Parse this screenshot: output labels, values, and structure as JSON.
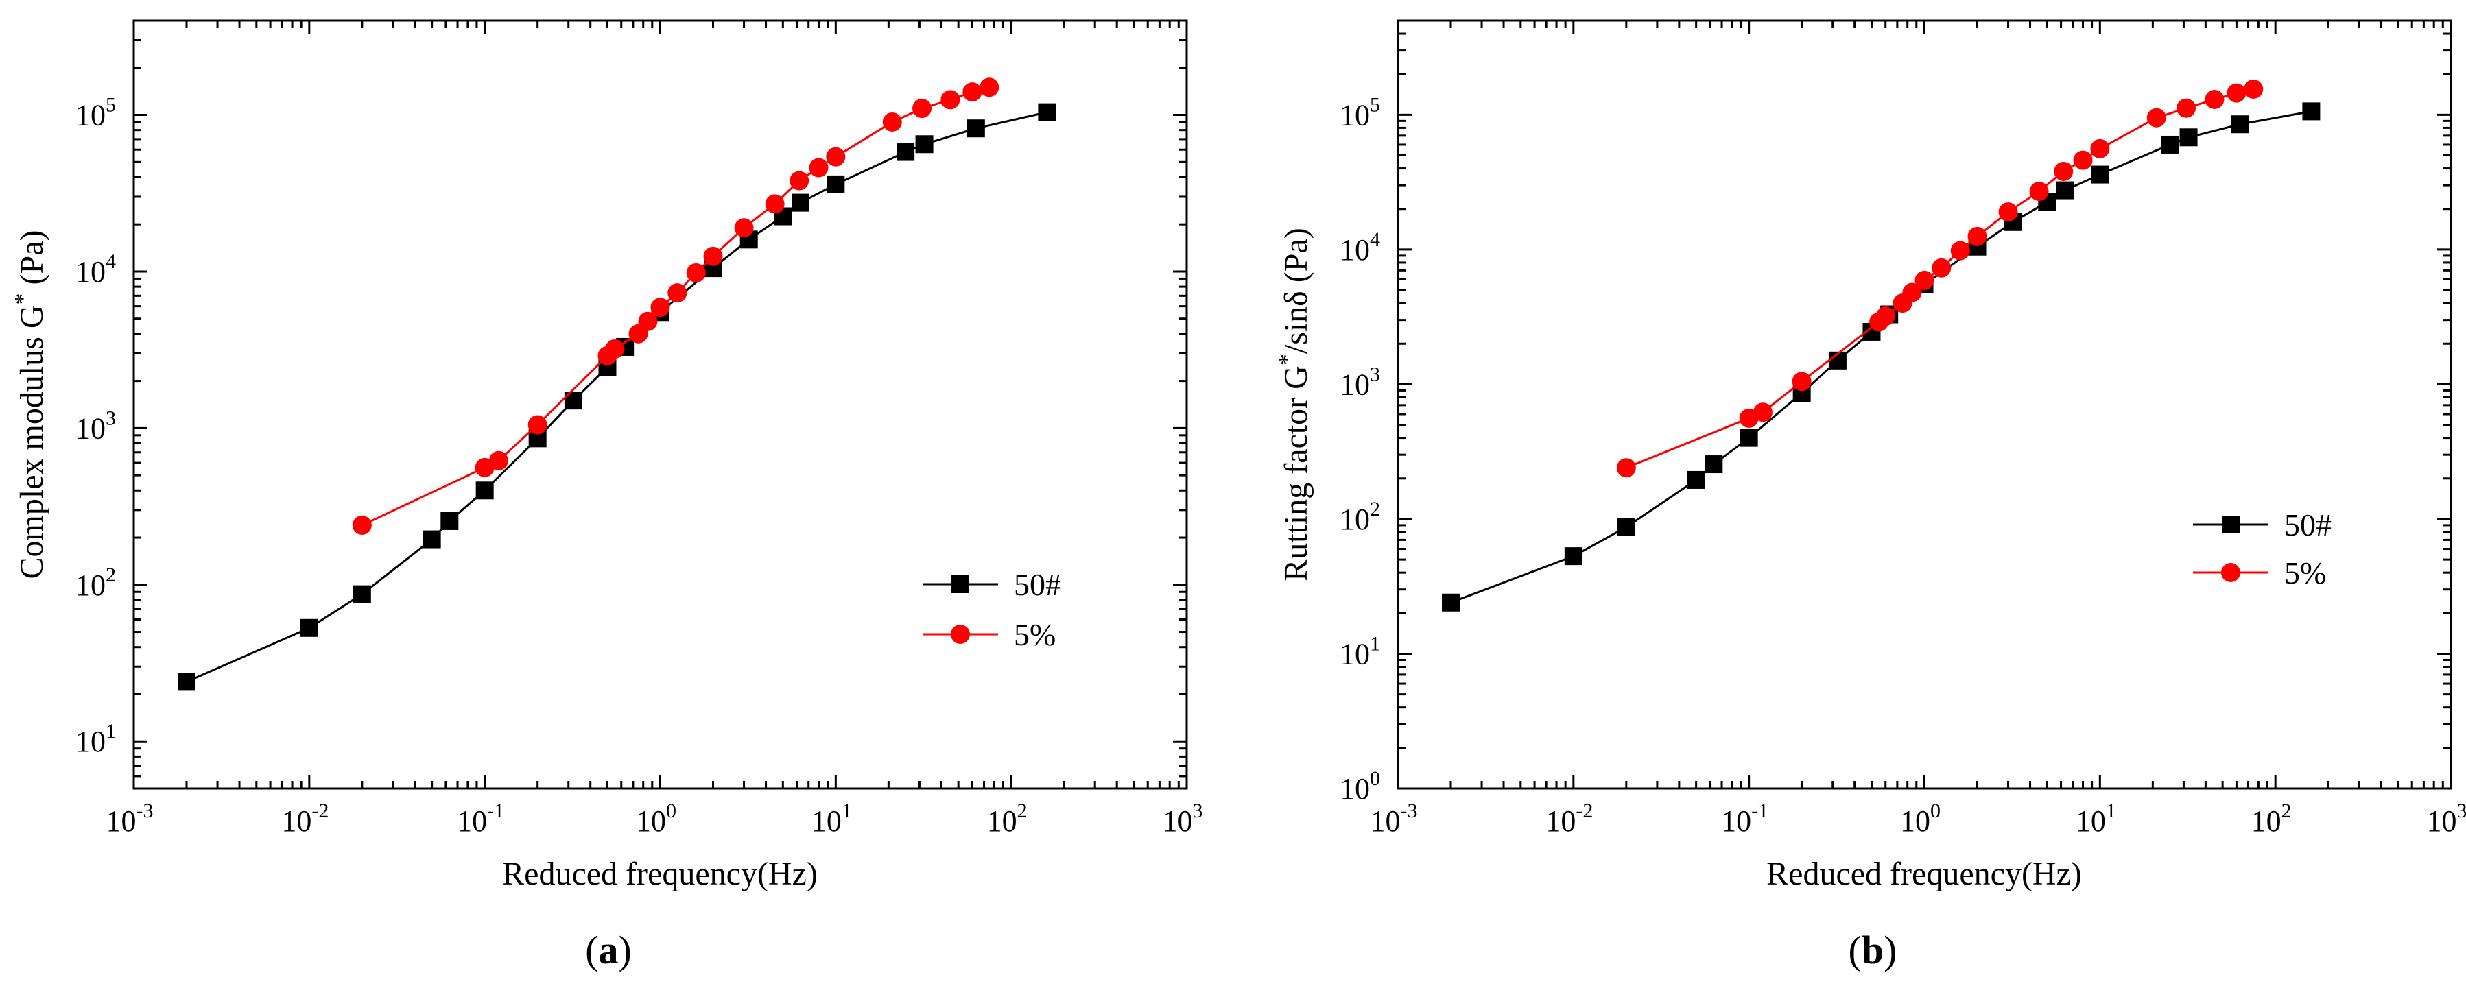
{
  "colors": {
    "series_50": "#000000",
    "series_5": "#ff0000",
    "axis": "#000000",
    "background": "#ffffff"
  },
  "chart_data": [
    {
      "type": "line",
      "panel_label": "(a)",
      "panel_letter": "a",
      "xscale": "log",
      "yscale": "log",
      "xlabel": "Reduced frequency(Hz)",
      "ylabel": "Complex modulus G* (Pa)",
      "ylabel_parts": {
        "pre": "Complex modulus G",
        "sup": "*",
        "post": " (Pa)"
      },
      "xlim": [
        0.001,
        1000
      ],
      "ylim": [
        5,
        400000
      ],
      "x_ticks": [
        {
          "base": "10",
          "exp": "-3"
        },
        {
          "base": "10",
          "exp": "-2"
        },
        {
          "base": "10",
          "exp": "-1"
        },
        {
          "base": "10",
          "exp": "0"
        },
        {
          "base": "10",
          "exp": "1"
        },
        {
          "base": "10",
          "exp": "2"
        },
        {
          "base": "10",
          "exp": "3"
        }
      ],
      "y_ticks": [
        {
          "base": "10",
          "exp": "1"
        },
        {
          "base": "10",
          "exp": "2"
        },
        {
          "base": "10",
          "exp": "3"
        },
        {
          "base": "10",
          "exp": "4"
        },
        {
          "base": "10",
          "exp": "5"
        }
      ],
      "legend": {
        "position": "right-middle",
        "entries": [
          "50#",
          "5%"
        ]
      },
      "series": [
        {
          "name": "50#",
          "marker": "square",
          "color": "#000000",
          "x": [
            0.002,
            0.01,
            0.02,
            0.05,
            0.063,
            0.1,
            0.2,
            0.32,
            0.5,
            0.63,
            1.0,
            2.0,
            3.2,
            5.0,
            6.3,
            10,
            25,
            32,
            63,
            160
          ],
          "y": [
            24,
            53,
            87,
            195,
            255,
            400,
            860,
            1500,
            2450,
            3300,
            5500,
            10500,
            16000,
            22500,
            27500,
            36000,
            58000,
            65000,
            82000,
            104000
          ]
        },
        {
          "name": "5%",
          "marker": "circle",
          "color": "#ff0000",
          "x": [
            0.02,
            0.1,
            0.12,
            0.2,
            0.5,
            0.55,
            0.75,
            0.85,
            1.0,
            1.25,
            1.6,
            2.0,
            3.0,
            4.5,
            6.2,
            8.0,
            10,
            21,
            31,
            45,
            60,
            75
          ],
          "y": [
            240,
            560,
            620,
            1050,
            2900,
            3200,
            4000,
            4800,
            5900,
            7300,
            9800,
            12500,
            19000,
            27000,
            38000,
            46000,
            54000,
            90000,
            110000,
            125000,
            140000,
            150000
          ]
        }
      ]
    },
    {
      "type": "line",
      "panel_label": "(b)",
      "panel_letter": "b",
      "xscale": "log",
      "yscale": "log",
      "xlabel": "Reduced frequency(Hz)",
      "ylabel": "Rutting factor G*/sinδ (Pa)",
      "ylabel_parts": {
        "pre": "Rutting factor G",
        "sup": "*",
        "post": "/sinδ (Pa)"
      },
      "xlim": [
        0.001,
        1000
      ],
      "ylim": [
        1,
        500000
      ],
      "x_ticks": [
        {
          "base": "10",
          "exp": "-3"
        },
        {
          "base": "10",
          "exp": "-2"
        },
        {
          "base": "10",
          "exp": "-1"
        },
        {
          "base": "10",
          "exp": "0"
        },
        {
          "base": "10",
          "exp": "1"
        },
        {
          "base": "10",
          "exp": "2"
        },
        {
          "base": "10",
          "exp": "3"
        }
      ],
      "y_ticks": [
        {
          "base": "10",
          "exp": "0"
        },
        {
          "base": "10",
          "exp": "1"
        },
        {
          "base": "10",
          "exp": "2"
        },
        {
          "base": "10",
          "exp": "3"
        },
        {
          "base": "10",
          "exp": "4"
        },
        {
          "base": "10",
          "exp": "5"
        }
      ],
      "legend": {
        "position": "right-middle",
        "entries": [
          "50#",
          "5%"
        ]
      },
      "series": [
        {
          "name": "50#",
          "marker": "square",
          "color": "#000000",
          "x": [
            0.002,
            0.01,
            0.02,
            0.05,
            0.063,
            0.1,
            0.2,
            0.32,
            0.5,
            0.63,
            1.0,
            2.0,
            3.2,
            5.0,
            6.3,
            10,
            25,
            32,
            63,
            160
          ],
          "y": [
            24,
            53,
            87,
            195,
            255,
            400,
            860,
            1500,
            2450,
            3300,
            5500,
            10500,
            16000,
            22500,
            27500,
            36000,
            60000,
            68000,
            85000,
            106000
          ]
        },
        {
          "name": "5%",
          "marker": "circle",
          "color": "#ff0000",
          "x": [
            0.02,
            0.1,
            0.12,
            0.2,
            0.55,
            0.6,
            0.75,
            0.85,
            1.0,
            1.25,
            1.6,
            2.0,
            3.0,
            4.5,
            6.2,
            8.0,
            10,
            21,
            31,
            45,
            60,
            75
          ],
          "y": [
            240,
            560,
            620,
            1050,
            2900,
            3200,
            4000,
            4800,
            5900,
            7300,
            9800,
            12500,
            19000,
            27000,
            38000,
            46000,
            56000,
            95000,
            112000,
            130000,
            145000,
            155000
          ]
        }
      ]
    }
  ]
}
